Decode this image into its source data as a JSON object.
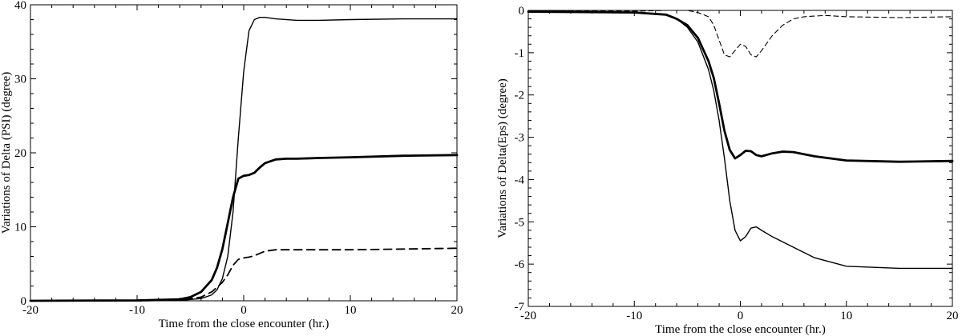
{
  "chart_data": [
    {
      "type": "line",
      "xlabel": "Time from the close encounter (hr.)",
      "ylabel": "Variations of Delta (PSI) (degree)",
      "xlim": [
        -20,
        20
      ],
      "ylim": [
        0,
        40
      ],
      "xticks": [
        -20,
        -10,
        0,
        10,
        20
      ],
      "yticks": [
        0,
        10,
        20,
        30,
        40
      ],
      "xtick_labels": [
        "-20",
        "-10",
        "0",
        "10",
        "20"
      ],
      "ytick_labels": [
        "0",
        "10",
        "20",
        "30",
        "40"
      ],
      "series": [
        {
          "style": "thin-solid",
          "x": [
            -20,
            -10,
            -6,
            -4,
            -3,
            -2.5,
            -2,
            -1.5,
            -1,
            -0.5,
            0,
            0.5,
            1,
            1.5,
            2,
            3,
            5,
            7,
            10,
            15,
            20
          ],
          "y": [
            0,
            0,
            0.05,
            0.3,
            0.8,
            1.5,
            3,
            6,
            12,
            22,
            31,
            36.5,
            38,
            38.3,
            38.3,
            38.1,
            37.9,
            37.9,
            38,
            38.1,
            38.1
          ]
        },
        {
          "style": "thick-solid",
          "x": [
            -20,
            -10,
            -6,
            -5,
            -4,
            -3,
            -2.5,
            -2,
            -1.5,
            -1,
            -0.5,
            0,
            0.5,
            1,
            1.5,
            2,
            3,
            4,
            5,
            7,
            10,
            15,
            20
          ],
          "y": [
            0,
            0.05,
            0.2,
            0.5,
            1.2,
            2.8,
            4.5,
            7,
            10.5,
            14,
            16.5,
            16.9,
            17,
            17.3,
            18,
            18.6,
            19.1,
            19.2,
            19.2,
            19.3,
            19.4,
            19.6,
            19.7
          ]
        },
        {
          "style": "dashed",
          "x": [
            -20,
            -10,
            -6,
            -4,
            -3,
            -2,
            -1.5,
            -1,
            -0.5,
            0,
            0.5,
            1,
            1.5,
            2,
            3,
            5,
            10,
            15,
            20
          ],
          "y": [
            0,
            0,
            0.1,
            0.5,
            1.2,
            2.5,
            3.5,
            4.8,
            5.6,
            5.8,
            5.9,
            6.1,
            6.4,
            6.7,
            6.9,
            6.9,
            6.9,
            7.0,
            7.1
          ]
        }
      ]
    },
    {
      "type": "line",
      "xlabel": "Time from the close encounter (hr.)",
      "ylabel": "Variations of Delta(Eps) (degree)",
      "xlim": [
        -20,
        20
      ],
      "ylim": [
        -7,
        0
      ],
      "xticks": [
        -20,
        -10,
        0,
        10,
        20
      ],
      "yticks": [
        0,
        -1,
        -2,
        -3,
        -4,
        -5,
        -6,
        -7
      ],
      "xtick_labels": [
        "-20",
        "-10",
        "0",
        "10",
        "20"
      ],
      "ytick_labels": [
        "0",
        "-1",
        "-2",
        "-3",
        "-4",
        "-5",
        "-6",
        "-7"
      ],
      "series": [
        {
          "style": "thin-solid",
          "x": [
            -20,
            -10,
            -7,
            -6,
            -5,
            -4,
            -3,
            -2.5,
            -2,
            -1.5,
            -1,
            -0.5,
            0,
            0.5,
            1,
            1.5,
            2,
            3,
            5,
            7,
            10,
            15,
            20
          ],
          "y": [
            -0.03,
            -0.05,
            -0.1,
            -0.2,
            -0.4,
            -0.75,
            -1.4,
            -1.9,
            -2.6,
            -3.5,
            -4.5,
            -5.2,
            -5.45,
            -5.35,
            -5.15,
            -5.12,
            -5.2,
            -5.35,
            -5.6,
            -5.85,
            -6.05,
            -6.1,
            -6.1
          ]
        },
        {
          "style": "thick-solid",
          "x": [
            -20,
            -10,
            -7,
            -6,
            -5,
            -4,
            -3,
            -2.5,
            -2,
            -1.5,
            -1,
            -0.5,
            0,
            0.5,
            1,
            1.5,
            2,
            3,
            4,
            5,
            7,
            10,
            15,
            20
          ],
          "y": [
            -0.03,
            -0.05,
            -0.1,
            -0.2,
            -0.35,
            -0.65,
            -1.2,
            -1.6,
            -2.2,
            -2.85,
            -3.3,
            -3.5,
            -3.42,
            -3.32,
            -3.33,
            -3.42,
            -3.45,
            -3.38,
            -3.34,
            -3.35,
            -3.45,
            -3.55,
            -3.58,
            -3.56
          ]
        },
        {
          "style": "thin-dashed",
          "x": [
            -20,
            -10,
            -7,
            -5,
            -4,
            -3,
            -2.5,
            -2,
            -1.5,
            -1,
            -0.5,
            0,
            0.5,
            1,
            1.5,
            2,
            3,
            4,
            5,
            6,
            8,
            10,
            15,
            20
          ],
          "y": [
            -0.02,
            -0.02,
            0,
            0,
            -0.05,
            -0.15,
            -0.35,
            -0.7,
            -1.05,
            -1.1,
            -0.95,
            -0.8,
            -0.85,
            -1.05,
            -1.1,
            -0.95,
            -0.6,
            -0.35,
            -0.2,
            -0.15,
            -0.12,
            -0.15,
            -0.17,
            -0.15
          ]
        }
      ]
    }
  ]
}
